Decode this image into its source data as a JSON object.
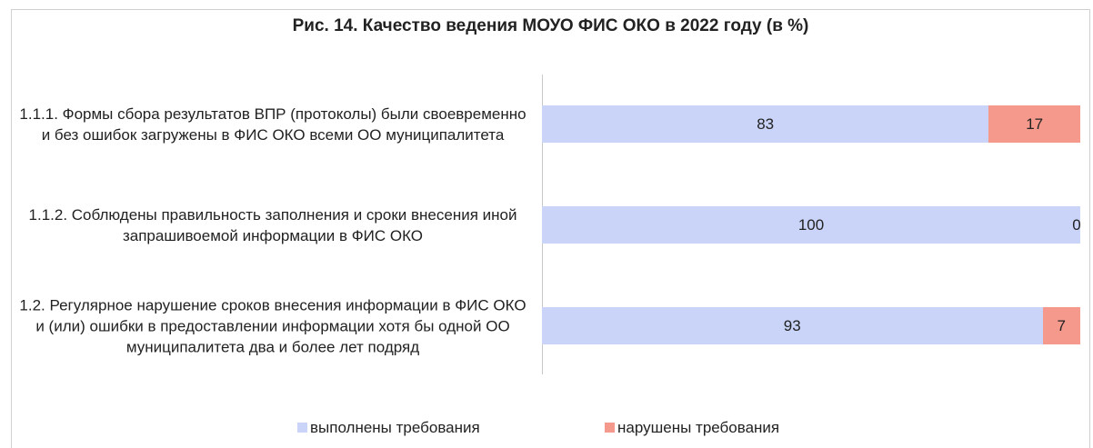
{
  "chart_data": {
    "type": "stacked-bar-horizontal",
    "title": "Рис. 14. Качество ведения МОУО ФИС ОКО в 2022 году (в %)",
    "categories": [
      "1.1.1. Формы сбора результатов ВПР (протоколы) были своевременно и без ошибок загружены в ФИС ОКО всеми ОО муниципалитета",
      "1.1.2. Соблюдены правильность заполнения и сроки внесения иной запрашивоемой информации в ФИС ОКО",
      "1.2. Регулярное нарушение сроков внесения информации в ФИС ОКО и (или) ошибки в предоставлении информации хотя бы одной ОО муниципалитета два и более лет подряд"
    ],
    "series": [
      {
        "name": "выполнены требования",
        "color": "#c9d4f8",
        "values": [
          83,
          100,
          93
        ]
      },
      {
        "name": "нарушены требования",
        "color": "#f4998c",
        "values": [
          17,
          0,
          7
        ]
      }
    ],
    "xlim": [
      0,
      100
    ],
    "legend": "bottom"
  }
}
